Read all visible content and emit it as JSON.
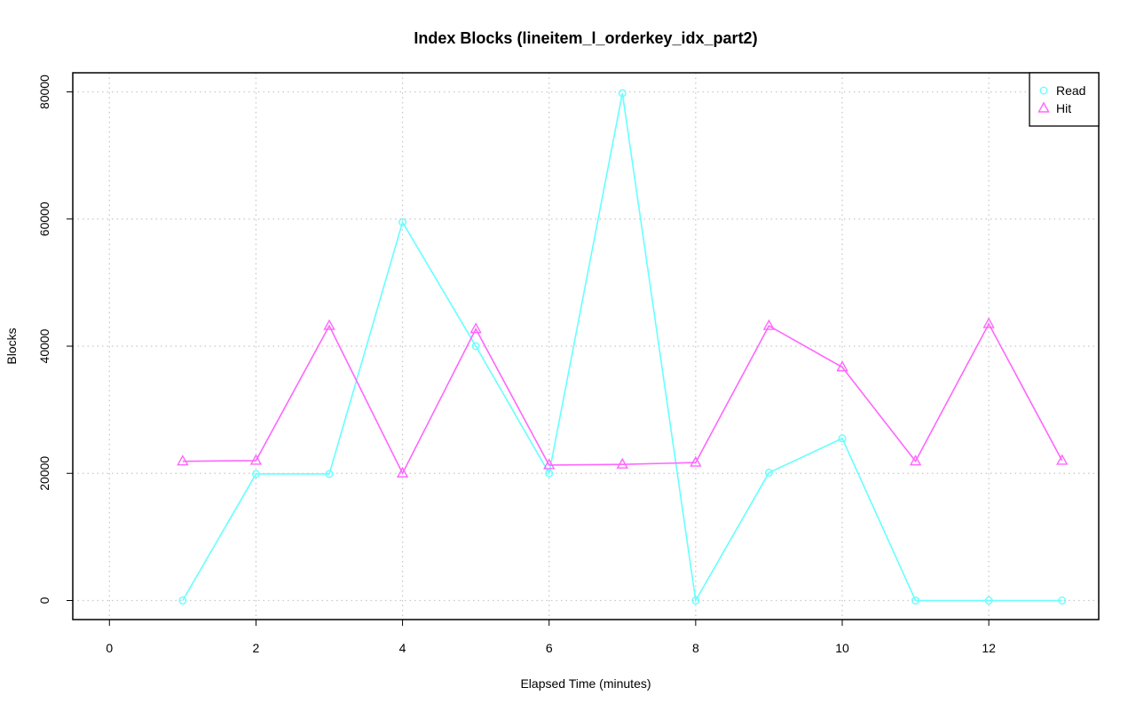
{
  "chart_data": {
    "type": "line",
    "title": "Index Blocks (lineitem_l_orderkey_idx_part2)",
    "xlabel": "Elapsed Time (minutes)",
    "ylabel": "Blocks",
    "xlim": [
      -0.5,
      13.5
    ],
    "ylim": [
      -3000,
      83000
    ],
    "x_ticks": [
      0,
      2,
      4,
      6,
      8,
      10,
      12
    ],
    "y_ticks": [
      0,
      20000,
      40000,
      60000,
      80000
    ],
    "x_tick_labels": [
      "0",
      "2",
      "4",
      "6",
      "8",
      "10",
      "12"
    ],
    "y_tick_labels": [
      "0",
      "20000",
      "40000",
      "60000",
      "80000"
    ],
    "grid": true,
    "legend_position": "top-right",
    "x": [
      1,
      2,
      3,
      4,
      5,
      6,
      7,
      8,
      9,
      10,
      11,
      12,
      13
    ],
    "series": [
      {
        "name": "Read",
        "color": "#66ffff",
        "marker": "circle",
        "values": [
          0,
          19900,
          19900,
          59500,
          40000,
          20000,
          79800,
          0,
          20100,
          25500,
          0,
          0,
          0
        ]
      },
      {
        "name": "Hit",
        "color": "#ff66ff",
        "marker": "triangle",
        "values": [
          21900,
          22000,
          43200,
          20000,
          42700,
          21300,
          21400,
          21700,
          43200,
          36700,
          21900,
          43500,
          22000
        ]
      }
    ]
  }
}
